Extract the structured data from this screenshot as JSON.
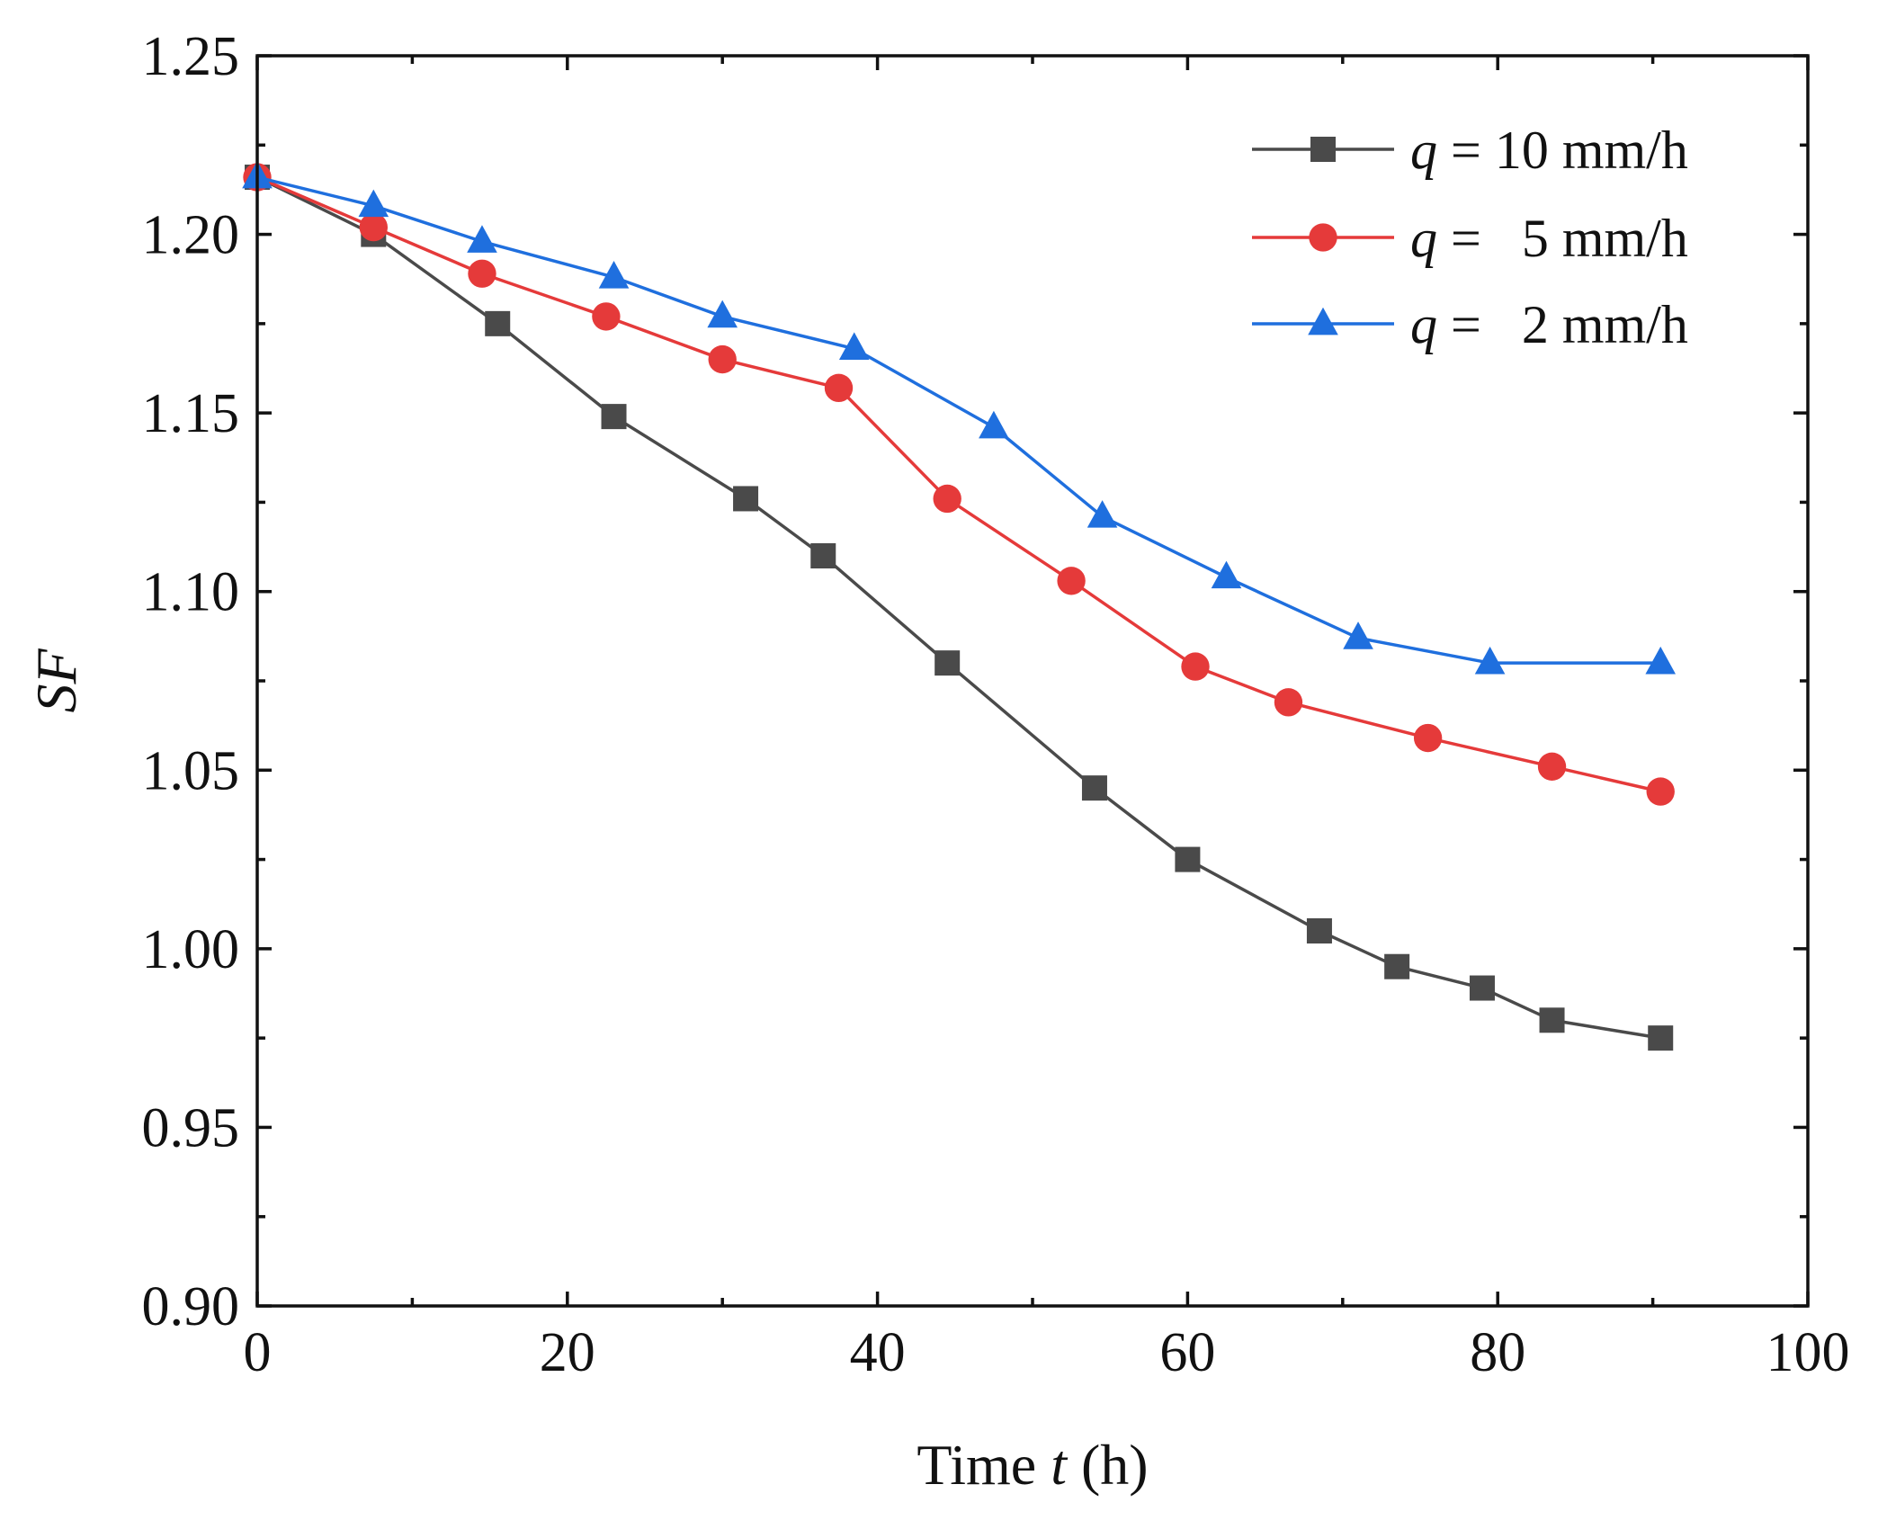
{
  "chart_data": {
    "type": "line",
    "xlabel": {
      "prefix": "Time ",
      "var": "t",
      "suffix": " (h)"
    },
    "ylabel": "SF",
    "xlim": [
      0,
      100
    ],
    "ylim": [
      0.9,
      1.25
    ],
    "xticks": [
      "0",
      "20",
      "40",
      "60",
      "80",
      "100"
    ],
    "xtick_values": [
      0,
      20,
      40,
      60,
      80,
      100
    ],
    "yticks": [
      "0.90",
      "0.95",
      "1.00",
      "1.05",
      "1.10",
      "1.15",
      "1.20",
      "1.25"
    ],
    "ytick_values": [
      0.9,
      0.95,
      1.0,
      1.05,
      1.1,
      1.15,
      1.2,
      1.25
    ],
    "grid": false,
    "legend_position": "top-right",
    "series": [
      {
        "name": {
          "var": "q",
          "text": " = 10 mm/h"
        },
        "color": "#4a4a4a",
        "marker": "square",
        "x": [
          0,
          7.5,
          15.5,
          23,
          31.5,
          36.5,
          44.5,
          54,
          60,
          68.5,
          73.5,
          79,
          83.5,
          90.5
        ],
        "y": [
          1.216,
          1.2,
          1.175,
          1.149,
          1.126,
          1.11,
          1.08,
          1.045,
          1.025,
          1.005,
          0.995,
          0.989,
          0.98,
          0.975
        ]
      },
      {
        "name": {
          "var": "q",
          "text": " =   5 mm/h"
        },
        "color": "#e53a3a",
        "marker": "circle",
        "x": [
          0,
          7.5,
          14.5,
          22.5,
          30,
          37.5,
          44.5,
          52.5,
          60.5,
          66.5,
          75.5,
          83.5,
          90.5
        ],
        "y": [
          1.216,
          1.202,
          1.189,
          1.177,
          1.165,
          1.157,
          1.126,
          1.103,
          1.079,
          1.069,
          1.059,
          1.051,
          1.044
        ]
      },
      {
        "name": {
          "var": "q",
          "text": " =   2 mm/h"
        },
        "color": "#1f6fde",
        "marker": "triangle",
        "x": [
          0,
          7.5,
          14.5,
          23,
          30,
          38.5,
          47.5,
          54.5,
          62.5,
          71,
          79.5,
          90.5
        ],
        "y": [
          1.216,
          1.208,
          1.198,
          1.188,
          1.177,
          1.168,
          1.146,
          1.121,
          1.104,
          1.087,
          1.08,
          1.08
        ]
      }
    ]
  }
}
